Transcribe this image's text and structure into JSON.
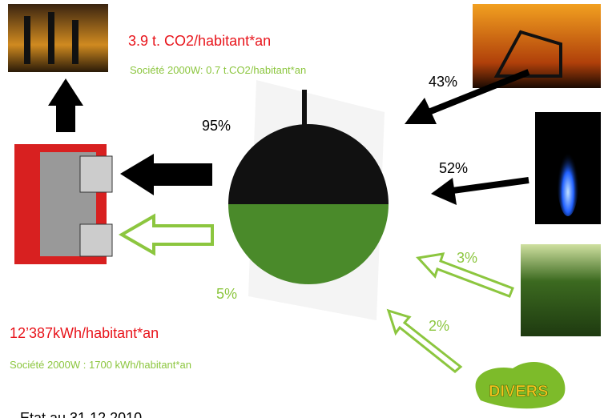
{
  "emissions": {
    "title": "3.9 t. CO2/habitant*an",
    "target": "Société 2000W: 0.7 t.CO2/habitant*an"
  },
  "energy": {
    "title": "12’387kWh/habitant*an",
    "target": "Société 2000W : 1700 kWh/habitant*an"
  },
  "sources": {
    "oil": "43%",
    "gas": "52%",
    "wood": "3%",
    "other": "2%",
    "other_label": "DIVERS"
  },
  "outputs": {
    "fossil": "95%",
    "renewable": "5%"
  },
  "footer": "Etat au 31.12.2010"
}
